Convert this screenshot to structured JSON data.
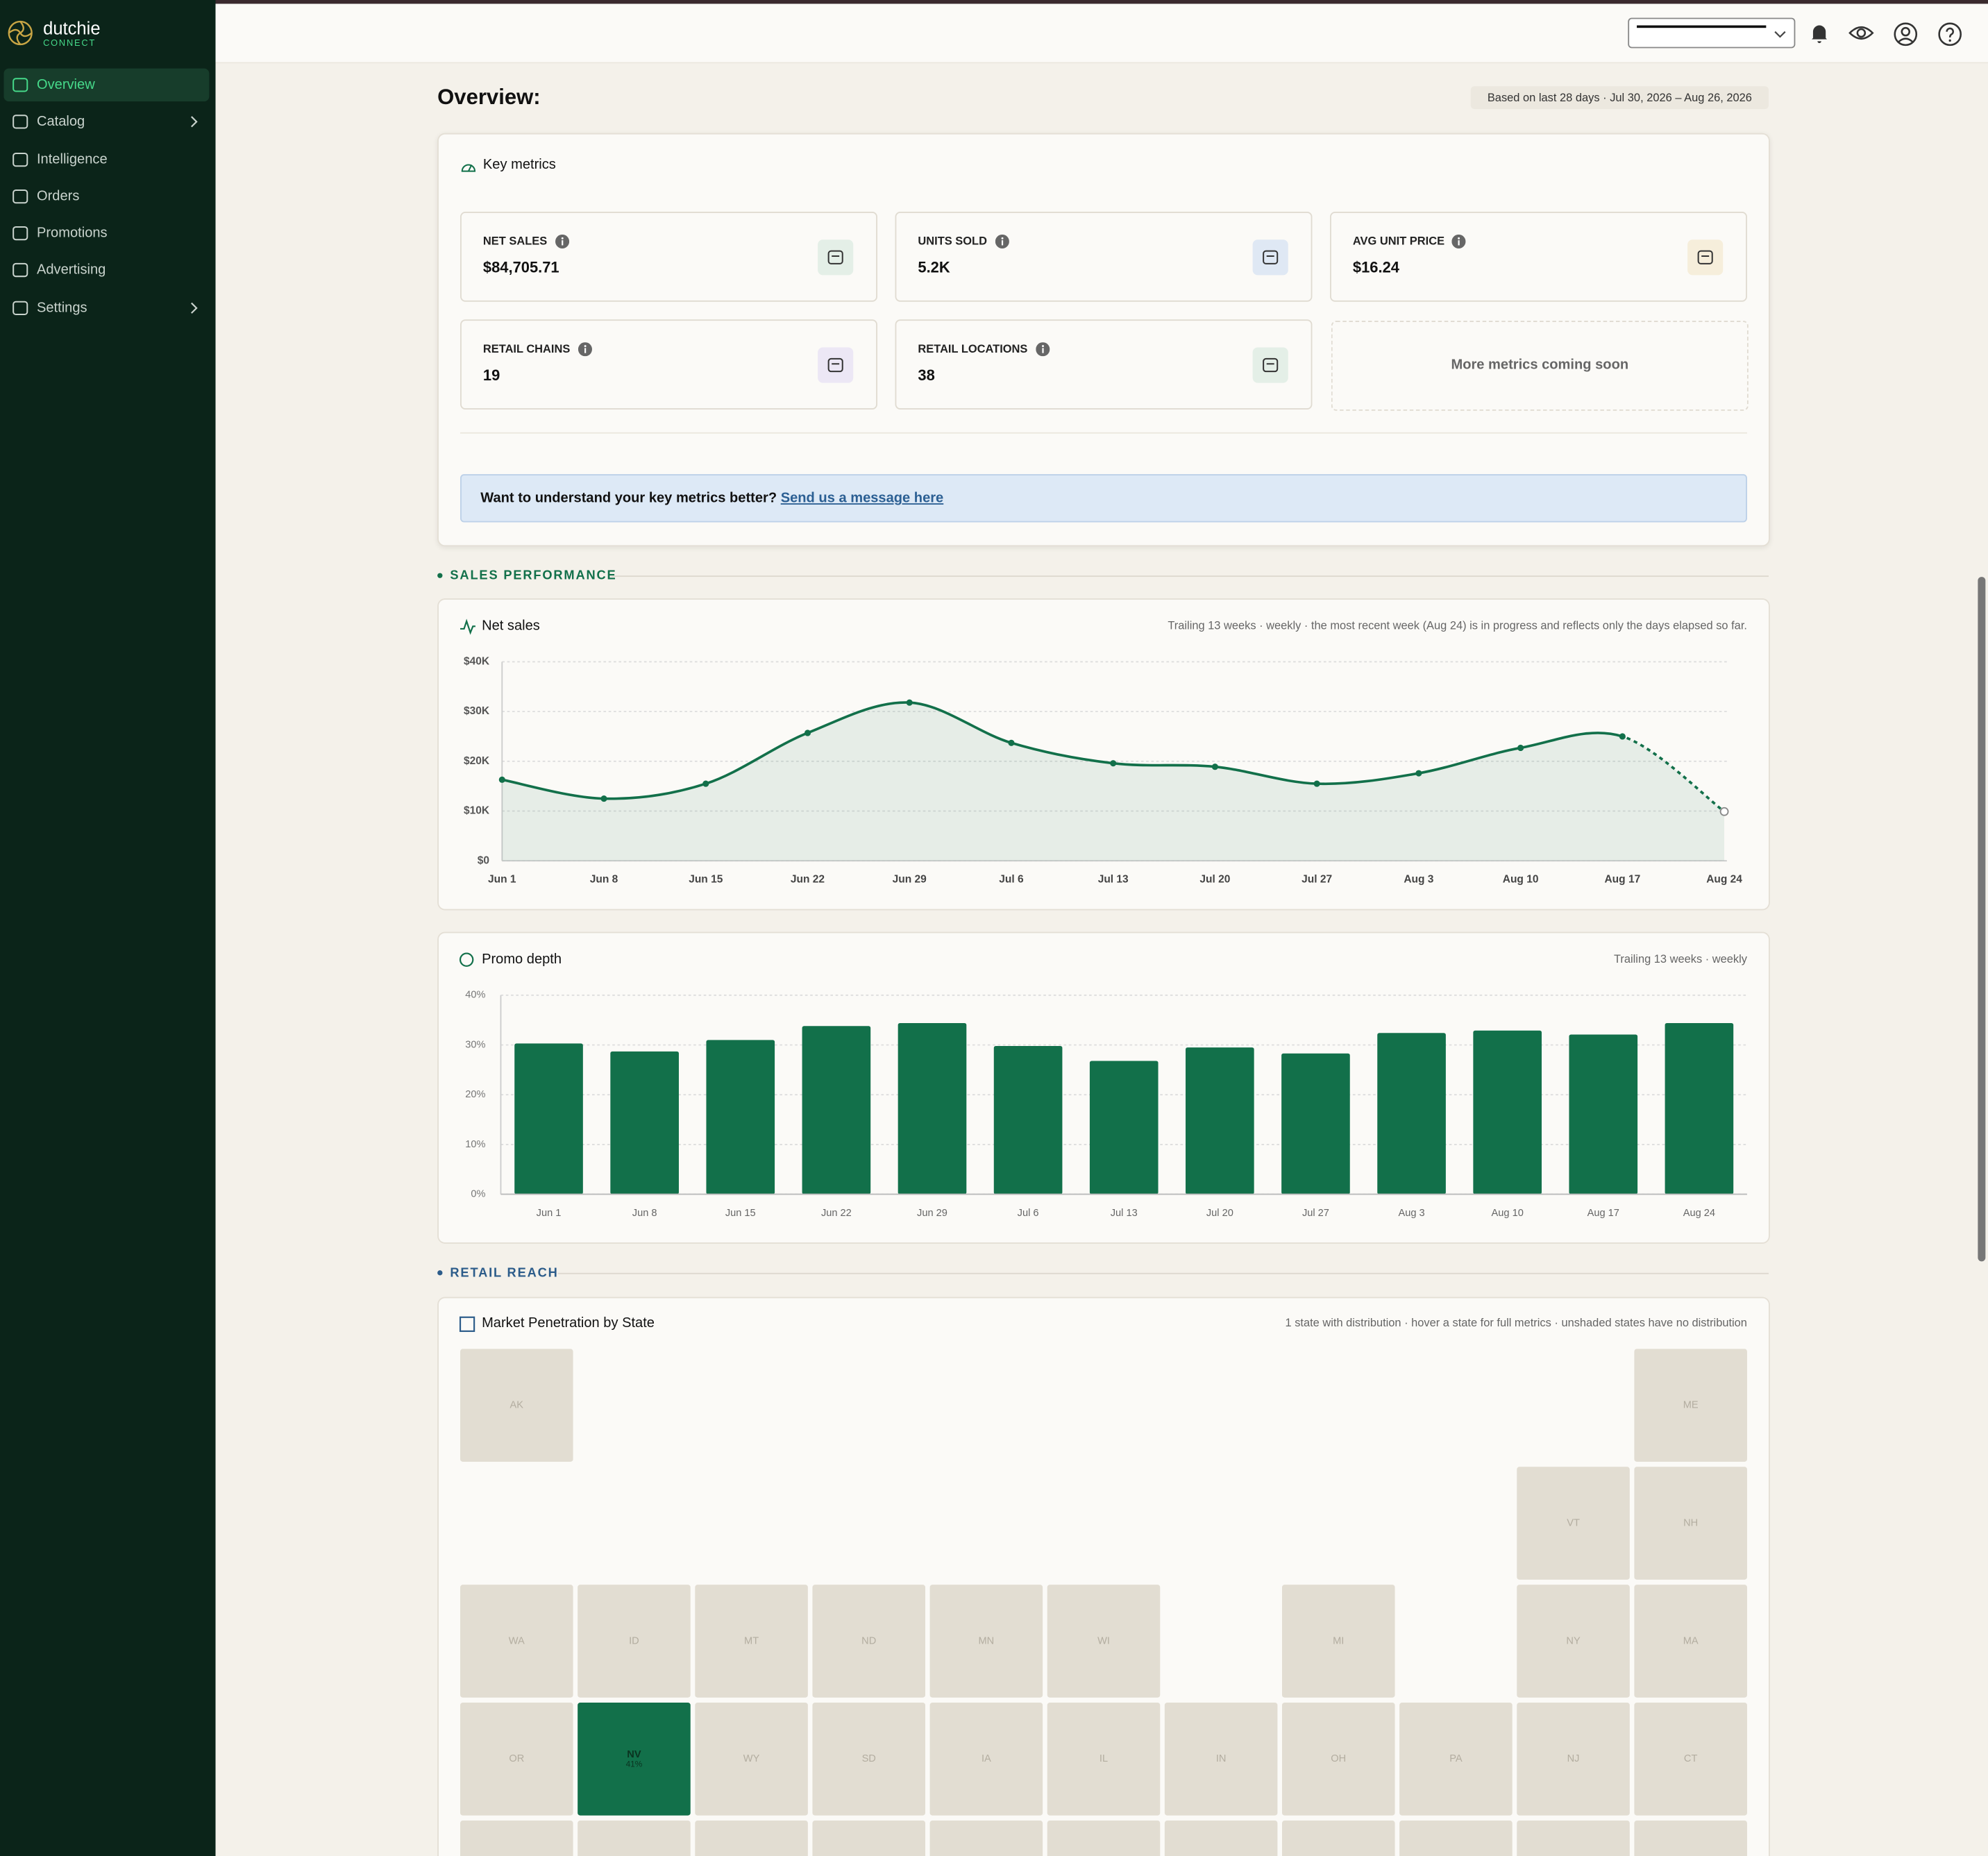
{
  "sidebar": {
    "brand": "dutchie",
    "brand_sub": "CONNECT",
    "nav": [
      {
        "label": "Overview",
        "active": true
      },
      {
        "label": "Catalog",
        "expandable": true
      },
      {
        "label": "Intelligence"
      },
      {
        "label": "Orders"
      },
      {
        "label": "Promotions"
      },
      {
        "label": "Advertising"
      },
      {
        "label": "Settings",
        "expandable": true
      }
    ]
  },
  "page": {
    "title": "Overview:",
    "date_range": "Based on last 28 days · Jul 30, 2026 – Aug 26, 2026"
  },
  "key_metrics": {
    "title": "Key metrics",
    "cards": [
      {
        "label": "NET SALES",
        "value": "$84,705.71"
      },
      {
        "label": "UNITS SOLD",
        "value": "5.2K"
      },
      {
        "label": "AVG UNIT PRICE",
        "value": "$16.24"
      },
      {
        "label": "RETAIL CHAINS",
        "value": "19"
      },
      {
        "label": "RETAIL LOCATIONS",
        "value": "38"
      }
    ],
    "placeholder": "More metrics coming soon",
    "banner": {
      "text": "Want to understand your key metrics better?",
      "link": "Send us a message here"
    }
  },
  "sales_section": "SALES PERFORMANCE",
  "net_sales_chart": {
    "type": "line",
    "title": "Net sales",
    "note": "Trailing 13 weeks · weekly · the most recent week (Aug 24) is in progress and reflects only the days elapsed so far.",
    "categories": [
      "Jun 1",
      "Jun 8",
      "Jun 15",
      "Jun 22",
      "Jun 29",
      "Jul 6",
      "Jul 13",
      "Jul 20",
      "Jul 27",
      "Aug 3",
      "Aug 10",
      "Aug 17",
      "Aug 24"
    ],
    "values": [
      16300,
      12500,
      15500,
      25700,
      31800,
      23700,
      19600,
      18900,
      15500,
      17600,
      22700,
      25000,
      9900
    ],
    "ylim": [
      0,
      40000
    ],
    "yticks": [
      {
        "value": 0,
        "label": "$0"
      },
      {
        "value": 10000,
        "label": "$10K"
      },
      {
        "value": 20000,
        "label": "$20K"
      },
      {
        "value": 30000,
        "label": "$30K"
      },
      {
        "value": 40000,
        "label": "$40K"
      }
    ],
    "color": "#12704a",
    "grid": true
  },
  "promo_chart": {
    "type": "bar",
    "title": "Promo depth",
    "note": "Trailing 13 weeks · weekly",
    "categories": [
      "Jun 1",
      "Jun 8",
      "Jun 15",
      "Jun 22",
      "Jun 29",
      "Jul 6",
      "Jul 13",
      "Jul 20",
      "Jul 27",
      "Aug 3",
      "Aug 10",
      "Aug 17",
      "Aug 24"
    ],
    "values": [
      30.3,
      28.7,
      31.0,
      33.8,
      34.4,
      29.8,
      26.8,
      29.5,
      28.3,
      32.4,
      32.9,
      32.1,
      34.4
    ],
    "ylim": [
      0,
      40
    ],
    "yticks": [
      {
        "value": 0,
        "label": "0%"
      },
      {
        "value": 10,
        "label": "10%"
      },
      {
        "value": 20,
        "label": "20%"
      },
      {
        "value": 30,
        "label": "30%"
      },
      {
        "value": 40,
        "label": "40%"
      }
    ],
    "color": "#12704a",
    "grid": true
  },
  "reach_section": "RETAIL REACH",
  "market_map": {
    "type": "tile-map",
    "title": "Market Penetration by State",
    "note": "1 state with distribution · hover a state for full metrics · unshaded states have no distribution",
    "color": "#12704a",
    "states": [
      {
        "code": "AK"
      },
      {
        "code": "ME"
      },
      {
        "code": "VT"
      },
      {
        "code": "NH"
      },
      {
        "code": "WA"
      },
      {
        "code": "ID"
      },
      {
        "code": "MT"
      },
      {
        "code": "ND"
      },
      {
        "code": "MN"
      },
      {
        "code": "WI"
      },
      {
        "code": "MI"
      },
      {
        "code": "NY"
      },
      {
        "code": "MA"
      },
      {
        "code": "OR"
      },
      {
        "code": "NV",
        "value": 41,
        "value_label": "41%"
      },
      {
        "code": "WY"
      },
      {
        "code": "SD"
      },
      {
        "code": "IA"
      },
      {
        "code": "IL"
      },
      {
        "code": "IN"
      },
      {
        "code": "OH"
      },
      {
        "code": "PA"
      },
      {
        "code": "NJ"
      },
      {
        "code": "CT"
      }
    ]
  }
}
